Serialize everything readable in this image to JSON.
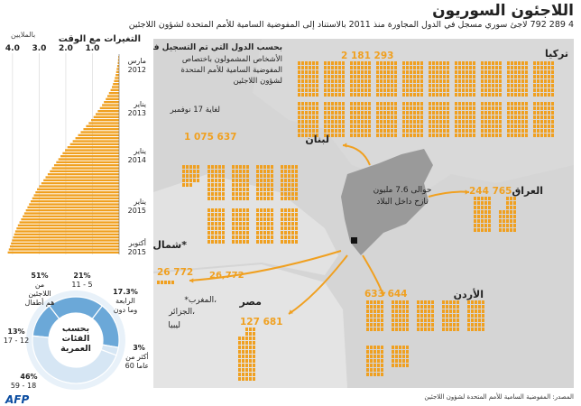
{
  "header": {
    "title": "اللاجئون السوريون",
    "subtitle": "4 289 792 لاجئ سوري مسجل في الدول المجاورة منذ 2011 بالاستناد إلى المفوضية السامية للأمم المتحدة لشؤون اللاجئين"
  },
  "footer": {
    "source": "المصدر: المفوضية السامية للأمم المتحدة لشؤون اللاجئين",
    "logo": "AFP"
  },
  "timeline": {
    "title": "التغيرات مع الوقت",
    "unit": "بالملايين",
    "ticks": [
      "1.0",
      "2.0",
      "3.0",
      "4.0"
    ],
    "date_labels": [
      {
        "month": "مارس",
        "year": "2012"
      },
      {
        "month": "يناير",
        "year": "2013"
      },
      {
        "month": "يناير",
        "year": "2014"
      },
      {
        "month": "يناير",
        "year": "2015"
      },
      {
        "month": "أكتوبر",
        "year": "2015"
      }
    ]
  },
  "map": {
    "legend_title": "بحسب الدول التي تم التسجيل فيها",
    "legend_text_1": "الأشخاص المشمولون باختصاص",
    "legend_text_2": "المفوضية السامية للأمم المتحدة",
    "legend_text_3": "لشؤون اللاجئين",
    "as_of": "لغاية 17 نوفمبر",
    "idp_line1": "حوالى 7.6 مليون",
    "idp_line2": "نازح داخل البلاد",
    "north_africa_note_1": "*المغرب،",
    "north_africa_note_2": "الجزائر،",
    "north_africa_note_3": "ليبيا",
    "arrow_value": "26,772"
  },
  "chart_data": [
    {
      "type": "bar",
      "title": "بحسب الدول التي تم التسجيل فيها",
      "categories": [
        "تركيا",
        "لبنان",
        "العراق",
        "الأردن",
        "مصر",
        "شمال أفريقيا*"
      ],
      "values": [
        2181293,
        1075637,
        244765,
        633644,
        127681,
        26772
      ],
      "value_labels": [
        "2 181 293",
        "1 075 637",
        "244 765",
        "633 644",
        "127 681",
        "26 772"
      ]
    },
    {
      "type": "bar",
      "orientation": "horizontal",
      "title": "التغيرات مع الوقت",
      "xlabel": "بالملايين",
      "xlim": [
        0,
        4.2
      ],
      "x_ticks": [
        1.0,
        2.0,
        3.0,
        4.0
      ],
      "y_range": [
        "مارس 2012",
        "أكتوبر 2015"
      ],
      "values": [
        0.03,
        0.04,
        0.05,
        0.07,
        0.09,
        0.11,
        0.13,
        0.16,
        0.19,
        0.23,
        0.27,
        0.32,
        0.38,
        0.44,
        0.5,
        0.57,
        0.64,
        0.72,
        0.8,
        0.88,
        0.96,
        1.05,
        1.14,
        1.24,
        1.34,
        1.44,
        1.54,
        1.64,
        1.74,
        1.84,
        1.94,
        2.03,
        2.12,
        2.2,
        2.28,
        2.36,
        2.44,
        2.52,
        2.6,
        2.68,
        2.76,
        2.84,
        2.92,
        3.0,
        3.08,
        3.14,
        3.2,
        3.26,
        3.32,
        3.38,
        3.44,
        3.5,
        3.56,
        3.62,
        3.68,
        3.74,
        3.8,
        3.85,
        3.9,
        3.94,
        3.98,
        4.02,
        4.06,
        4.1,
        4.14,
        4.18
      ]
    },
    {
      "type": "pie",
      "title": "بحسب الفئات العمرية",
      "labels": [
        "11 - 5",
        "17.3% الرابعة وما دون",
        "60 عاما أكثر من",
        "59 - 18",
        "17 - 12",
        "51% اللاجئين هم أطفال"
      ],
      "segments": [
        {
          "label": "11 - 5",
          "value": 21,
          "text": "21%"
        },
        {
          "label": "الرابعة وما دون",
          "value": 17.3,
          "text": "17.3%"
        },
        {
          "label": "أكثر من 60 عاما",
          "value": 3,
          "text": "3%"
        },
        {
          "label": "18 - 59",
          "value": 46,
          "text": "46%"
        },
        {
          "label": "12 - 17",
          "value": 13,
          "text": "13%"
        }
      ],
      "center_label": [
        "بحسب",
        "الفئات",
        "العمرية"
      ],
      "children_note": [
        "51%",
        "من",
        "اللاجئين",
        "هم أطفال"
      ],
      "colors": {
        "children": "#6ba8d8",
        "adults": "#d6e6f4",
        "ring_bg": "#e8f1f9"
      }
    }
  ],
  "colors": {
    "bar": "#f0a020",
    "map_bg": "#d5d5d5",
    "syria": "#9a9a9a",
    "arrow": "#f0a020",
    "text_dark": "#222222"
  }
}
